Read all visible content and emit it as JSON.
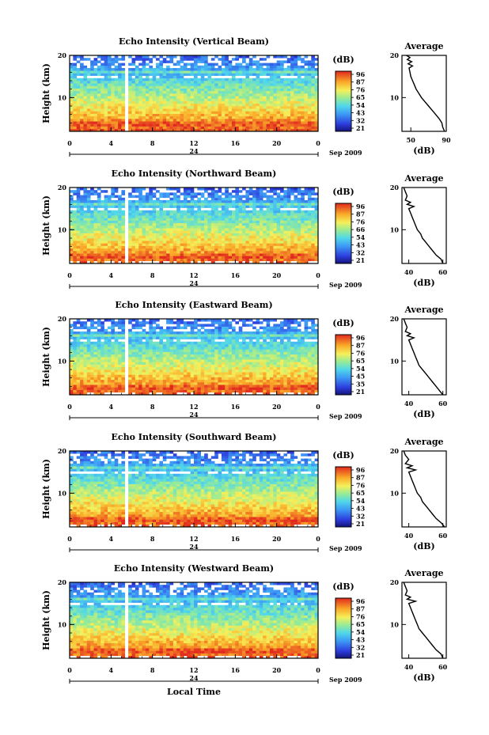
{
  "figure": {
    "xlabel": "Local Time",
    "date_label": "Sep 2009",
    "day_label": "24",
    "unit_label": "(dB)",
    "ylabel": "Height (km)",
    "avg_title": "Average",
    "avg_xlabel": "(dB)"
  },
  "chart_data": [
    {
      "type": "heatmap",
      "title": "Echo Intensity (Vertical Beam)",
      "ylabel": "Height (km)",
      "xlabel": "Local Time",
      "x_ticks": [
        "0",
        "4",
        "8",
        "12",
        "16",
        "20",
        "0"
      ],
      "y_ticks": [
        "10",
        "20"
      ],
      "xlim": [
        0,
        24
      ],
      "ylim": [
        2,
        20
      ],
      "colorbar_ticks": [
        "96",
        "87",
        "76",
        "65",
        "54",
        "43",
        "32",
        "21"
      ],
      "colorbar_range": [
        21,
        96
      ],
      "data_gap_hour": 5.5,
      "average_profile": {
        "title": "Average",
        "xlabel": "(dB)",
        "x_ticks": [
          "50",
          "90"
        ],
        "xlim": [
          40,
          90
        ],
        "y_ticks": [
          "10",
          "20"
        ],
        "height_km": [
          2,
          3,
          4,
          5,
          6,
          7,
          8,
          9,
          10,
          11,
          12,
          13,
          14,
          15,
          16,
          17,
          17.5,
          18,
          18.5,
          19,
          19.5,
          20
        ],
        "value_db": [
          88,
          86,
          85,
          82,
          78,
          74,
          70,
          66,
          62,
          59,
          56,
          54,
          52,
          50,
          49,
          48,
          52,
          47,
          51,
          46,
          49,
          45
        ]
      }
    },
    {
      "type": "heatmap",
      "title": "Echo Intensity (Northward Beam)",
      "ylabel": "Height (km)",
      "xlabel": "Local Time",
      "x_ticks": [
        "0",
        "4",
        "8",
        "12",
        "16",
        "20",
        "0"
      ],
      "y_ticks": [
        "10",
        "20"
      ],
      "xlim": [
        0,
        24
      ],
      "ylim": [
        2,
        20
      ],
      "colorbar_ticks": [
        "96",
        "87",
        "76",
        "66",
        "54",
        "43",
        "32",
        "21"
      ],
      "colorbar_range": [
        21,
        96
      ],
      "data_gap_hour": 5.5,
      "average_profile": {
        "title": "Average",
        "xlabel": "(dB)",
        "x_ticks": [
          "40",
          "60"
        ],
        "xlim": [
          36,
          62
        ],
        "y_ticks": [
          "10",
          "20"
        ],
        "height_km": [
          2,
          3,
          4,
          5,
          6,
          7,
          8,
          9,
          10,
          11,
          12,
          13,
          14,
          15,
          15.5,
          16,
          16.5,
          17,
          18,
          19,
          20
        ],
        "value_db": [
          60,
          59,
          56,
          54,
          52,
          50,
          48,
          47,
          45,
          44,
          43,
          42,
          41,
          40,
          43,
          39,
          41,
          38,
          39,
          38,
          37
        ]
      }
    },
    {
      "type": "heatmap",
      "title": "Echo Intensity (Eastward Beam)",
      "ylabel": "Height (km)",
      "xlabel": "Local Time",
      "x_ticks": [
        "0",
        "4",
        "8",
        "12",
        "16",
        "20",
        "0"
      ],
      "y_ticks": [
        "10",
        "20"
      ],
      "xlim": [
        0,
        24
      ],
      "ylim": [
        2,
        20
      ],
      "colorbar_ticks": [
        "96",
        "87",
        "76",
        "65",
        "54",
        "45",
        "35",
        "21"
      ],
      "colorbar_range": [
        21,
        96
      ],
      "data_gap_hour": 5.5,
      "average_profile": {
        "title": "Average",
        "xlabel": "(dB)",
        "x_ticks": [
          "40",
          "60"
        ],
        "xlim": [
          36,
          62
        ],
        "y_ticks": [
          "10",
          "20"
        ],
        "height_km": [
          2,
          3,
          4,
          5,
          6,
          7,
          8,
          9,
          10,
          11,
          12,
          13,
          14,
          15,
          15.5,
          16,
          16.5,
          17,
          18,
          19,
          20
        ],
        "value_db": [
          60,
          58,
          56,
          54,
          52,
          50,
          48,
          46,
          45,
          44,
          43,
          42,
          41,
          40,
          43,
          39,
          41,
          38,
          39,
          38,
          37
        ]
      }
    },
    {
      "type": "heatmap",
      "title": "Echo Intensity (Southward Beam)",
      "ylabel": "Height (km)",
      "xlabel": "Local Time",
      "x_ticks": [
        "0",
        "4",
        "8",
        "12",
        "16",
        "20",
        "0"
      ],
      "y_ticks": [
        "10",
        "20"
      ],
      "xlim": [
        0,
        24
      ],
      "ylim": [
        2,
        20
      ],
      "colorbar_ticks": [
        "96",
        "87",
        "76",
        "65",
        "54",
        "43",
        "32",
        "21"
      ],
      "colorbar_range": [
        21,
        96
      ],
      "data_gap_hour": 5.5,
      "average_profile": {
        "title": "Average",
        "xlabel": "(dB)",
        "x_ticks": [
          "40",
          "60"
        ],
        "xlim": [
          36,
          62
        ],
        "y_ticks": [
          "10",
          "20"
        ],
        "height_km": [
          2,
          3,
          4,
          5,
          6,
          7,
          8,
          9,
          10,
          11,
          12,
          13,
          14,
          15,
          15.5,
          16,
          16.5,
          17,
          18,
          19,
          20
        ],
        "value_db": [
          61,
          59,
          56,
          54,
          52,
          50,
          48,
          47,
          45,
          44,
          43,
          42,
          41,
          40,
          44,
          39,
          42,
          38,
          40,
          38,
          37
        ]
      }
    },
    {
      "type": "heatmap",
      "title": "Echo Intensity (Westward Beam)",
      "ylabel": "Height (km)",
      "xlabel": "Local Time",
      "x_ticks": [
        "0",
        "4",
        "8",
        "12",
        "16",
        "20",
        "0"
      ],
      "y_ticks": [
        "10",
        "20"
      ],
      "xlim": [
        0,
        24
      ],
      "ylim": [
        2,
        20
      ],
      "colorbar_ticks": [
        "96",
        "87",
        "76",
        "65",
        "54",
        "43",
        "32",
        "21"
      ],
      "colorbar_range": [
        21,
        96
      ],
      "data_gap_hour": 5.5,
      "average_profile": {
        "title": "Average",
        "xlabel": "(dB)",
        "x_ticks": [
          "40",
          "60"
        ],
        "xlim": [
          36,
          62
        ],
        "y_ticks": [
          "10",
          "20"
        ],
        "height_km": [
          2,
          3,
          4,
          5,
          6,
          7,
          8,
          9,
          10,
          11,
          12,
          13,
          14,
          15,
          15.5,
          16,
          16.5,
          17,
          18,
          19,
          20
        ],
        "value_db": [
          60,
          59,
          56,
          54,
          52,
          50,
          48,
          46,
          45,
          44,
          43,
          42,
          41,
          40,
          44,
          39,
          41,
          38,
          39,
          38,
          37
        ]
      }
    }
  ]
}
